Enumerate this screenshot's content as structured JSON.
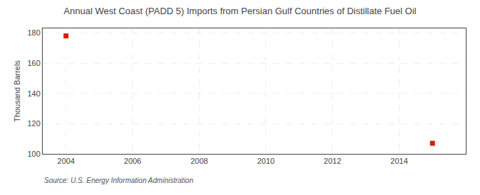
{
  "chart_data": {
    "type": "scatter",
    "title": "Annual West Coast (PADD 5) Imports from Persian Gulf Countries of Distillate Fuel Oil",
    "ylabel": "Thousand Barrels",
    "annotations": [
      "Source: U.S. Energy Information Administration"
    ],
    "x": [
      2004,
      2015
    ],
    "values": [
      178,
      107
    ],
    "color": "#cc2200",
    "marker": "square",
    "xlim": [
      2003.3,
      2016.0
    ],
    "ylim": [
      100,
      183
    ],
    "xticks": [
      2004,
      2006,
      2008,
      2010,
      2012,
      2014
    ],
    "yticks": [
      100,
      120,
      140,
      160,
      180
    ],
    "grid": true
  }
}
